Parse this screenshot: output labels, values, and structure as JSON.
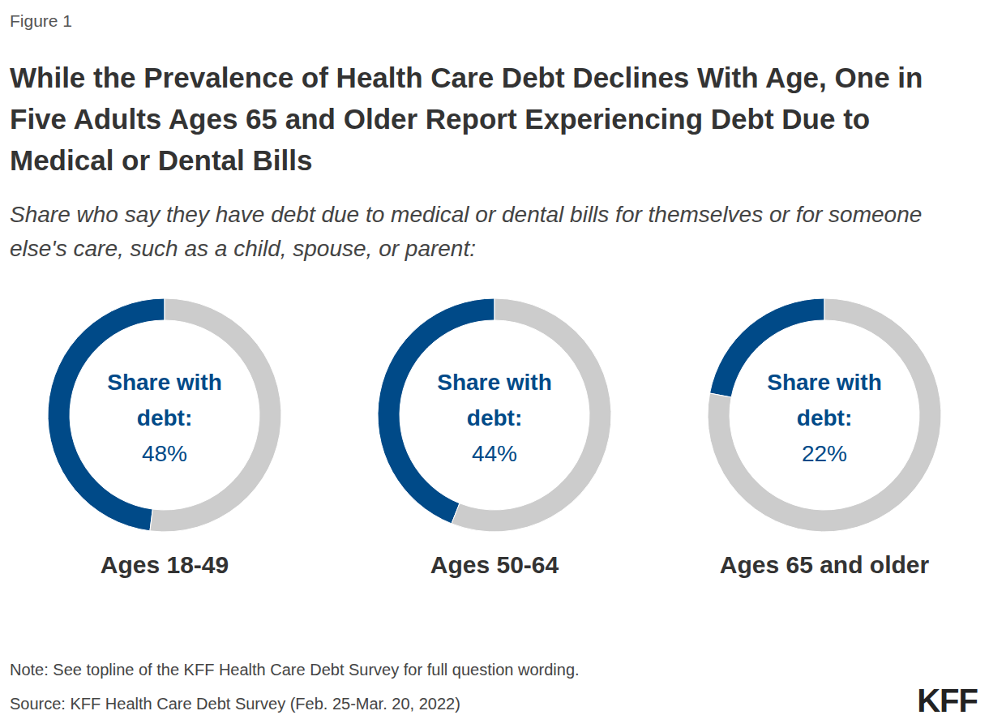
{
  "figure_label": "Figure 1",
  "title": "While the Prevalence of Health Care Debt Declines With Age, One in Five Adults Ages 65 and Older Report Experiencing Debt Due to Medical or Dental Bills",
  "subtitle": "Share who say they have debt due to medical or dental bills for themselves or for someone else's care, such as a child, spouse, or parent:",
  "note": "Note: See topline of the KFF Health Care Debt Survey for full question wording.",
  "source": "Source: KFF Health Care Debt Survey (Feb. 25-Mar. 20, 2022)",
  "brand": "KFF",
  "chart_data": [
    {
      "type": "pie",
      "title": "Ages 18-49",
      "center_label": "Share with debt:",
      "values": [
        48,
        52
      ],
      "value_labels": [
        "48%",
        null
      ],
      "colors": [
        "#004a88",
        "#cccccc"
      ]
    },
    {
      "type": "pie",
      "title": "Ages 50-64",
      "center_label": "Share with debt:",
      "values": [
        44,
        56
      ],
      "value_labels": [
        "44%",
        null
      ],
      "colors": [
        "#004a88",
        "#cccccc"
      ]
    },
    {
      "type": "pie",
      "title": "Ages 65 and older",
      "center_label": "Share with debt:",
      "values": [
        22,
        78
      ],
      "value_labels": [
        "22%",
        null
      ],
      "colors": [
        "#004a88",
        "#cccccc"
      ]
    }
  ]
}
